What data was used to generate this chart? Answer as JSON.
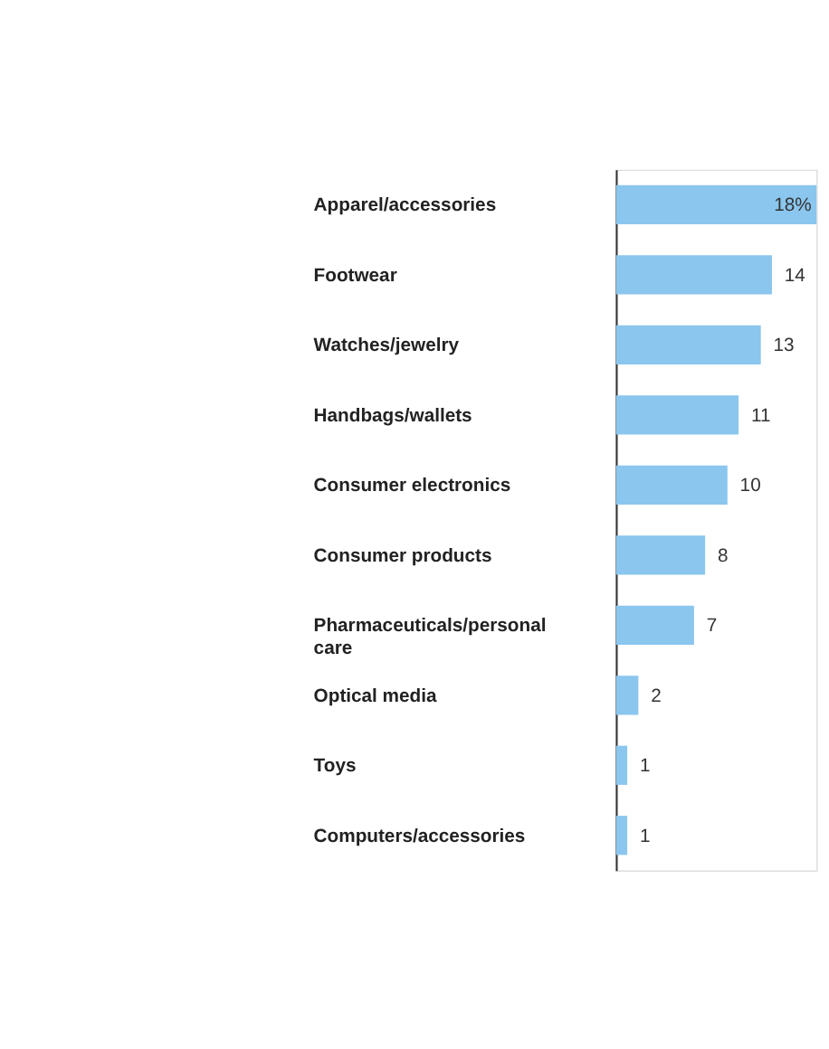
{
  "chart_data": {
    "type": "bar",
    "orientation": "horizontal",
    "categories": [
      "Apparel/accessories",
      "Footwear",
      "Watches/jewelry",
      "Handbags/wallets",
      "Consumer electronics",
      "Consumer products",
      "Pharmaceuticals/personal care",
      "Optical media",
      "Toys",
      "Computers/accessories"
    ],
    "values": [
      18,
      14,
      13,
      11,
      10,
      8,
      7,
      2,
      1,
      1
    ],
    "value_labels": [
      "18%",
      "14",
      "13",
      "11",
      "10",
      "8",
      "7",
      "2",
      "1",
      "1"
    ],
    "color": "#8ac6ee",
    "grid": false,
    "tick_labels": "y"
  }
}
